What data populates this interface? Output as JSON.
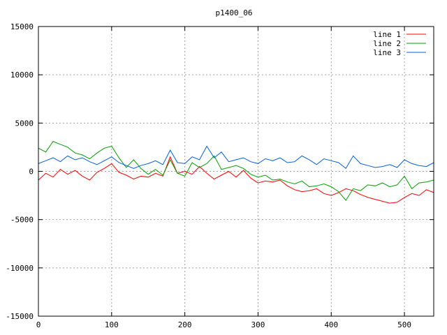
{
  "chart_data": {
    "type": "line",
    "title": "p1400_06",
    "xlabel": "",
    "ylabel": "",
    "xlim": [
      0,
      540
    ],
    "ylim": [
      -15000,
      15000
    ],
    "x_ticks": [
      0,
      100,
      200,
      300,
      400,
      500
    ],
    "y_ticks": [
      -15000,
      -10000,
      -5000,
      0,
      5000,
      10000,
      15000
    ],
    "grid": true,
    "legend_position": "top-right",
    "series": [
      {
        "name": "line 1",
        "color": "#ff0000",
        "x": [
          0,
          10,
          20,
          30,
          40,
          50,
          60,
          70,
          80,
          90,
          100,
          110,
          120,
          130,
          140,
          150,
          160,
          170,
          180,
          190,
          200,
          210,
          220,
          230,
          240,
          250,
          260,
          270,
          280,
          290,
          300,
          310,
          320,
          330,
          340,
          350,
          360,
          370,
          380,
          390,
          400,
          410,
          420,
          430,
          440,
          450,
          460,
          470,
          480,
          490,
          500,
          510,
          520,
          530,
          540
        ],
        "y": [
          -900,
          -200,
          -600,
          200,
          -300,
          100,
          -500,
          -900,
          -100,
          300,
          800,
          -100,
          -400,
          -800,
          -500,
          -600,
          -200,
          -500,
          1500,
          -200,
          0,
          -300,
          500,
          -200,
          -800,
          -400,
          0,
          -600,
          100,
          -700,
          -1200,
          -1000,
          -1100,
          -900,
          -1500,
          -1900,
          -2100,
          -2000,
          -1800,
          -2300,
          -2500,
          -2200,
          -1800,
          -2000,
          -2400,
          -2700,
          -2900,
          -3100,
          -3300,
          -3200,
          -2700,
          -2300,
          -2500,
          -1900,
          -2200
        ]
      },
      {
        "name": "line 2",
        "color": "#00a000",
        "x": [
          0,
          10,
          20,
          30,
          40,
          50,
          60,
          70,
          80,
          90,
          100,
          110,
          120,
          130,
          140,
          150,
          160,
          170,
          180,
          190,
          200,
          210,
          220,
          230,
          240,
          250,
          260,
          270,
          280,
          290,
          300,
          310,
          320,
          330,
          340,
          350,
          360,
          370,
          380,
          390,
          400,
          410,
          420,
          430,
          440,
          450,
          460,
          470,
          480,
          490,
          500,
          510,
          520,
          530,
          540
        ],
        "y": [
          2400,
          2000,
          3100,
          2800,
          2500,
          1900,
          1700,
          1300,
          1900,
          2400,
          2600,
          1400,
          400,
          1200,
          300,
          -300,
          200,
          -400,
          1200,
          -200,
          -500,
          900,
          400,
          800,
          1600,
          200,
          400,
          600,
          300,
          -300,
          -600,
          -400,
          -900,
          -800,
          -1100,
          -1300,
          -1000,
          -1600,
          -1500,
          -1300,
          -1600,
          -2100,
          -3000,
          -1800,
          -2000,
          -1400,
          -1500,
          -1200,
          -1600,
          -1400,
          -500,
          -1800,
          -1200,
          -1100,
          -900
        ]
      },
      {
        "name": "line 3",
        "color": "#0060e0",
        "x": [
          0,
          10,
          20,
          30,
          40,
          50,
          60,
          70,
          80,
          90,
          100,
          110,
          120,
          130,
          140,
          150,
          160,
          170,
          180,
          190,
          200,
          210,
          220,
          230,
          240,
          250,
          260,
          270,
          280,
          290,
          300,
          310,
          320,
          330,
          340,
          350,
          360,
          370,
          380,
          390,
          400,
          410,
          420,
          430,
          440,
          450,
          460,
          470,
          480,
          490,
          500,
          510,
          520,
          530,
          540
        ],
        "y": [
          800,
          1100,
          1400,
          1000,
          1600,
          1200,
          1400,
          1000,
          700,
          1100,
          1500,
          900,
          600,
          300,
          600,
          800,
          1100,
          700,
          2200,
          900,
          800,
          1500,
          1200,
          2600,
          1400,
          2000,
          1000,
          1200,
          1400,
          1000,
          800,
          1300,
          1100,
          1400,
          900,
          1000,
          1600,
          1200,
          700,
          1300,
          1100,
          900,
          300,
          1600,
          800,
          600,
          400,
          500,
          700,
          400,
          1200,
          800,
          600,
          500,
          900
        ]
      }
    ]
  }
}
